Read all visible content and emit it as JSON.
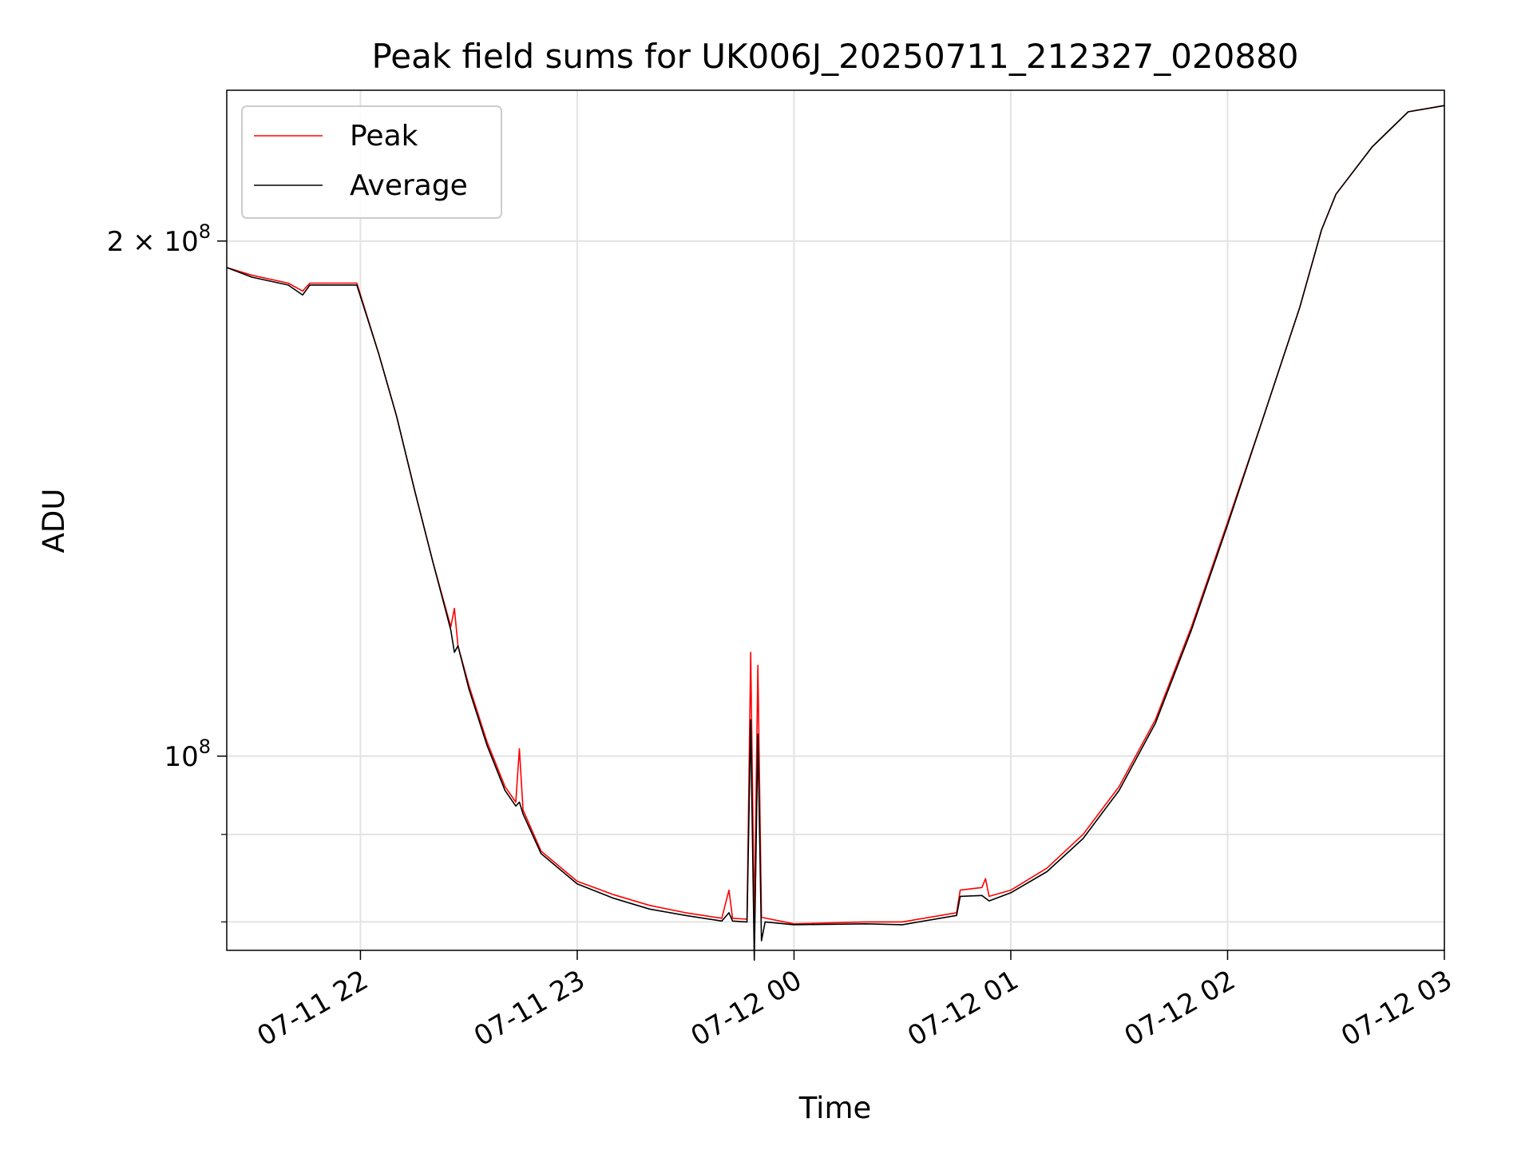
{
  "chart_data": {
    "type": "line",
    "title": "Peak field sums for UK006J_20250711_212327_020880",
    "xlabel": "Time",
    "ylabel": "ADU",
    "x_axis": {
      "type": "datetime",
      "range": [
        "2025-07-11 21:23",
        "2025-07-12 03:00"
      ],
      "ticks": [
        {
          "value": "2025-07-11 22:00",
          "label": "07-11 22"
        },
        {
          "value": "2025-07-11 23:00",
          "label": "07-11 23"
        },
        {
          "value": "2025-07-12 00:00",
          "label": "07-12 00"
        },
        {
          "value": "2025-07-12 01:00",
          "label": "07-12 01"
        },
        {
          "value": "2025-07-12 02:00",
          "label": "07-12 02"
        },
        {
          "value": "2025-07-12 03:00",
          "label": "07-12 03"
        }
      ]
    },
    "y_axis": {
      "scale": "log",
      "range": [
        77000000,
        245000000
      ],
      "major_ticks": [
        {
          "value": 100000000,
          "base": "10",
          "exp": "8",
          "coef": ""
        },
        {
          "value": 200000000,
          "base": "10",
          "exp": "8",
          "coef": "2 × "
        }
      ],
      "minor_ticks": [
        80000000,
        90000000
      ]
    },
    "grid": true,
    "legend": {
      "placement": "top-left"
    },
    "series": [
      {
        "name": "Peak",
        "color": "#ff0000",
        "points": [
          [
            "2025-07-11 21:23",
            193000000
          ],
          [
            "2025-07-11 21:30",
            191000000
          ],
          [
            "2025-07-11 21:40",
            189000000
          ],
          [
            "2025-07-11 21:44",
            187000000
          ],
          [
            "2025-07-11 21:46",
            189000000
          ],
          [
            "2025-07-11 21:59",
            189000000
          ],
          [
            "2025-07-11 22:05",
            172000000
          ],
          [
            "2025-07-11 22:10",
            158000000
          ],
          [
            "2025-07-11 22:15",
            143000000
          ],
          [
            "2025-07-11 22:20",
            130000000
          ],
          [
            "2025-07-11 22:25",
            119000000
          ],
          [
            "2025-07-11 22:26",
            122000000
          ],
          [
            "2025-07-11 22:27",
            116000000
          ],
          [
            "2025-07-11 22:30",
            110000000
          ],
          [
            "2025-07-11 22:35",
            102000000
          ],
          [
            "2025-07-11 22:40",
            96000000
          ],
          [
            "2025-07-11 22:43",
            94000000
          ],
          [
            "2025-07-11 22:44",
            101000000
          ],
          [
            "2025-07-11 22:45",
            93000000
          ],
          [
            "2025-07-11 22:50",
            88000000
          ],
          [
            "2025-07-11 23:00",
            84500000
          ],
          [
            "2025-07-11 23:10",
            83000000
          ],
          [
            "2025-07-11 23:20",
            81800000
          ],
          [
            "2025-07-11 23:30",
            81000000
          ],
          [
            "2025-07-11 23:40",
            80400000
          ],
          [
            "2025-07-11 23:42",
            83500000
          ],
          [
            "2025-07-11 23:43",
            80400000
          ],
          [
            "2025-07-11 23:47",
            80300000
          ],
          [
            "2025-07-11 23:48",
            115000000
          ],
          [
            "2025-07-11 23:49",
            80000000
          ],
          [
            "2025-07-11 23:50",
            113000000
          ],
          [
            "2025-07-11 23:51",
            80500000
          ],
          [
            "2025-07-12 00:00",
            79800000
          ],
          [
            "2025-07-12 00:20",
            80000000
          ],
          [
            "2025-07-12 00:30",
            80000000
          ],
          [
            "2025-07-12 00:45",
            81000000
          ],
          [
            "2025-07-12 00:46",
            83500000
          ],
          [
            "2025-07-12 00:52",
            83800000
          ],
          [
            "2025-07-12 00:53",
            84800000
          ],
          [
            "2025-07-12 00:54",
            82800000
          ],
          [
            "2025-07-12 01:00",
            83500000
          ],
          [
            "2025-07-12 01:10",
            86000000
          ],
          [
            "2025-07-12 01:20",
            90000000
          ],
          [
            "2025-07-12 01:30",
            96000000
          ],
          [
            "2025-07-12 01:40",
            105000000
          ],
          [
            "2025-07-12 01:50",
            119000000
          ],
          [
            "2025-07-12 02:00",
            137000000
          ],
          [
            "2025-07-12 02:10",
            158000000
          ],
          [
            "2025-07-12 02:20",
            183000000
          ],
          [
            "2025-07-12 02:26",
            203000000
          ],
          [
            "2025-07-12 02:30",
            213000000
          ],
          [
            "2025-07-12 02:40",
            227000000
          ],
          [
            "2025-07-12 02:50",
            238000000
          ],
          [
            "2025-07-12 03:00",
            240000000
          ]
        ]
      },
      {
        "name": "Average",
        "color": "#000000",
        "points": [
          [
            "2025-07-11 21:23",
            193000000
          ],
          [
            "2025-07-11 21:30",
            190500000
          ],
          [
            "2025-07-11 21:40",
            188500000
          ],
          [
            "2025-07-11 21:44",
            186000000
          ],
          [
            "2025-07-11 21:46",
            188500000
          ],
          [
            "2025-07-11 21:59",
            188500000
          ],
          [
            "2025-07-11 22:05",
            172000000
          ],
          [
            "2025-07-11 22:10",
            158000000
          ],
          [
            "2025-07-11 22:15",
            143000000
          ],
          [
            "2025-07-11 22:20",
            130000000
          ],
          [
            "2025-07-11 22:25",
            118500000
          ],
          [
            "2025-07-11 22:26",
            115000000
          ],
          [
            "2025-07-11 22:27",
            116000000
          ],
          [
            "2025-07-11 22:30",
            109500000
          ],
          [
            "2025-07-11 22:35",
            101500000
          ],
          [
            "2025-07-11 22:40",
            95500000
          ],
          [
            "2025-07-11 22:43",
            93500000
          ],
          [
            "2025-07-11 22:44",
            94000000
          ],
          [
            "2025-07-11 22:45",
            92500000
          ],
          [
            "2025-07-11 22:50",
            87700000
          ],
          [
            "2025-07-11 23:00",
            84200000
          ],
          [
            "2025-07-11 23:10",
            82600000
          ],
          [
            "2025-07-11 23:20",
            81400000
          ],
          [
            "2025-07-11 23:30",
            80700000
          ],
          [
            "2025-07-11 23:40",
            80100000
          ],
          [
            "2025-07-11 23:42",
            81000000
          ],
          [
            "2025-07-11 23:43",
            80100000
          ],
          [
            "2025-07-11 23:47",
            80000000
          ],
          [
            "2025-07-11 23:48",
            105000000
          ],
          [
            "2025-07-11 23:49",
            76000000
          ],
          [
            "2025-07-11 23:50",
            103000000
          ],
          [
            "2025-07-11 23:51",
            78000000
          ],
          [
            "2025-07-11 23:52",
            80000000
          ],
          [
            "2025-07-12 00:00",
            79700000
          ],
          [
            "2025-07-12 00:20",
            79800000
          ],
          [
            "2025-07-12 00:30",
            79700000
          ],
          [
            "2025-07-12 00:45",
            80700000
          ],
          [
            "2025-07-12 00:46",
            82800000
          ],
          [
            "2025-07-12 00:52",
            82900000
          ],
          [
            "2025-07-12 00:54",
            82300000
          ],
          [
            "2025-07-12 01:00",
            83200000
          ],
          [
            "2025-07-12 01:10",
            85600000
          ],
          [
            "2025-07-12 01:20",
            89500000
          ],
          [
            "2025-07-12 01:30",
            95500000
          ],
          [
            "2025-07-12 01:40",
            104500000
          ],
          [
            "2025-07-12 01:50",
            118500000
          ],
          [
            "2025-07-12 02:00",
            136500000
          ],
          [
            "2025-07-12 02:10",
            158000000
          ],
          [
            "2025-07-12 02:20",
            183000000
          ],
          [
            "2025-07-12 02:26",
            203000000
          ],
          [
            "2025-07-12 02:30",
            213000000
          ],
          [
            "2025-07-12 02:40",
            227000000
          ],
          [
            "2025-07-12 02:50",
            238000000
          ],
          [
            "2025-07-12 03:00",
            240000000
          ]
        ]
      }
    ]
  }
}
